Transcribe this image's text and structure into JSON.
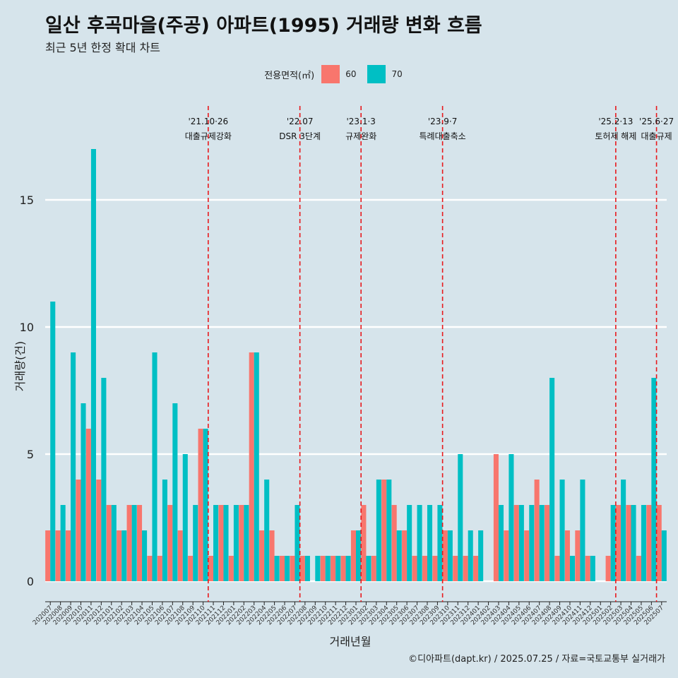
{
  "title": "일산 후곡마을(주공) 아파트(1995) 거래량 변화 흐름",
  "subtitle": "최근 5년 한정 확대 차트",
  "caption": "©디아파트(dapt.kr) / 2025.07.25 / 자료=국토교통부 실거래가",
  "legend": {
    "title": "전용면적(㎡)",
    "items": [
      {
        "label": "60",
        "color": "#f8766d"
      },
      {
        "label": "70",
        "color": "#00bfc4"
      }
    ]
  },
  "chart_data": {
    "type": "bar",
    "xlabel": "거래년월",
    "ylabel": "거래량(건)",
    "ylim": [
      0,
      17.5
    ],
    "yticks": [
      0,
      5,
      10,
      15
    ],
    "grid": true,
    "legend_position": "top",
    "categories": [
      "202007",
      "202008",
      "202009",
      "202010",
      "202011",
      "202012",
      "202101",
      "202102",
      "202103",
      "202104",
      "202105",
      "202106",
      "202107",
      "202108",
      "202109",
      "202110",
      "202111",
      "202112",
      "202201",
      "202202",
      "202203",
      "202204",
      "202205",
      "202206",
      "202207",
      "202208",
      "202209",
      "202210",
      "202211",
      "202212",
      "202301",
      "202302",
      "202303",
      "202304",
      "202305",
      "202306",
      "202307",
      "202308",
      "202309",
      "202310",
      "202311",
      "202312",
      "202401",
      "202402",
      "202403",
      "202404",
      "202405",
      "202406",
      "202407",
      "202408",
      "202409",
      "202410",
      "202411",
      "202412",
      "202501",
      "202502",
      "202503",
      "202504",
      "202505",
      "202506",
      "202507"
    ],
    "series": [
      {
        "name": "60",
        "color": "#f8766d",
        "values": [
          2,
          2,
          2,
          4,
          6,
          4,
          3,
          2,
          3,
          3,
          1,
          1,
          3,
          2,
          1,
          6,
          1,
          3,
          1,
          3,
          9,
          2,
          2,
          1,
          1,
          1,
          0,
          1,
          1,
          1,
          2,
          3,
          1,
          4,
          3,
          2,
          1,
          1,
          1,
          2,
          1,
          1,
          1,
          0,
          5,
          2,
          3,
          2,
          4,
          3,
          1,
          2,
          2,
          1,
          0,
          1,
          3,
          3,
          1,
          3,
          3
        ]
      },
      {
        "name": "70",
        "color": "#00bfc4",
        "values": [
          11,
          3,
          9,
          7,
          17,
          8,
          3,
          2,
          3,
          2,
          9,
          4,
          7,
          5,
          3,
          6,
          3,
          3,
          3,
          3,
          9,
          4,
          1,
          1,
          3,
          1,
          1,
          1,
          1,
          1,
          2,
          1,
          4,
          4,
          2,
          3,
          3,
          3,
          3,
          2,
          5,
          2,
          2,
          0,
          3,
          5,
          3,
          3,
          3,
          8,
          4,
          1,
          4,
          1,
          0,
          3,
          4,
          3,
          3,
          8,
          2
        ]
      }
    ],
    "events": [
      {
        "index": 15.5,
        "date": "'21.10·26",
        "label": "대출규제강화"
      },
      {
        "index": 24.5,
        "date": "'22.07",
        "label": "DSR 3단계"
      },
      {
        "index": 30.5,
        "date": "'23.1·3",
        "label": "규제완화"
      },
      {
        "index": 38.5,
        "date": "'23.9·7",
        "label": "특례대출축소"
      },
      {
        "index": 55.5,
        "date": "'25.2·13",
        "label": "토허제 해제"
      },
      {
        "index": 59.5,
        "date": "'25.6·27",
        "label": "대출규제"
      }
    ]
  }
}
